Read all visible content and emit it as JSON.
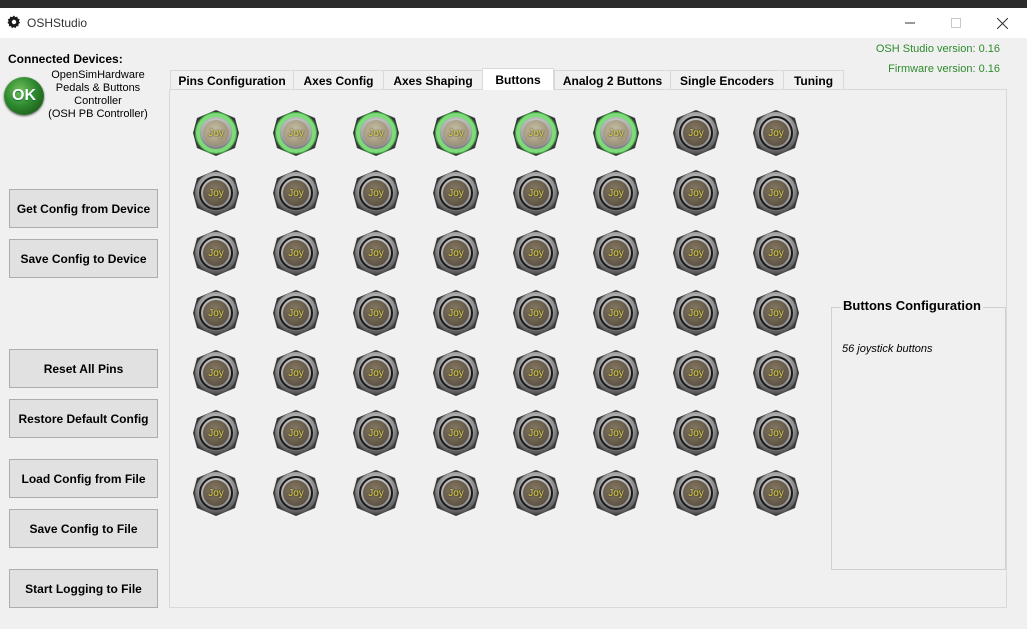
{
  "window": {
    "title": "OSHStudio"
  },
  "sidebar": {
    "connected_label": "Connected Devices:",
    "status_badge": "OK",
    "device_lines": [
      "OpenSimHardware",
      "Pedals & Buttons",
      "Controller",
      "(OSH PB Controller)"
    ],
    "buttons": [
      "Get Config from Device",
      "Save Config to Device",
      "Reset All Pins",
      "Restore Default Config",
      "Load Config from File",
      "Save Config to File",
      "Start Logging to File"
    ]
  },
  "versions": {
    "studio": "OSH Studio version:  0.16",
    "firmware": "Firmware version:  0.16"
  },
  "tabs": [
    {
      "label": "Pins Configuration"
    },
    {
      "label": "Axes Config"
    },
    {
      "label": "Axes Shaping"
    },
    {
      "label": "Buttons",
      "active": true
    },
    {
      "label": "Analog 2 Buttons"
    },
    {
      "label": "Single Encoders"
    },
    {
      "label": "Tuning"
    }
  ],
  "buttons_panel": {
    "joy_label": "Joy",
    "rows": 7,
    "cols": 8,
    "active_buttons": [
      1,
      2,
      3,
      4,
      5,
      6
    ],
    "group_title": "Buttons Configuration",
    "group_text": "56 joystick buttons"
  },
  "colors": {
    "status_ok": "#2f8a2f",
    "version_text": "#2e8b2e",
    "active_ring": "#7ddc7a",
    "joy_text": "#e0d24a"
  }
}
